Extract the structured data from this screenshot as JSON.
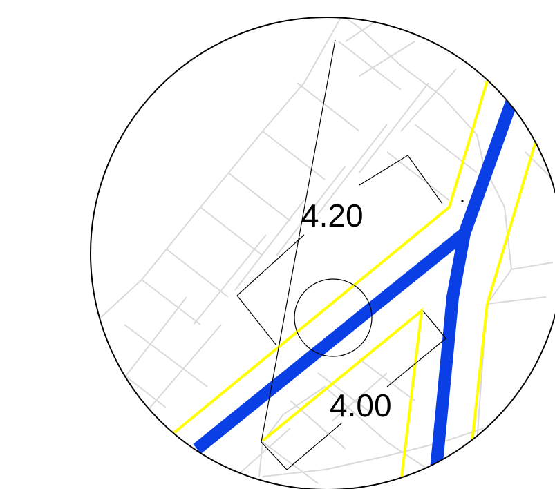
{
  "dimensions": {
    "upper": "4.20",
    "lower": "4.00"
  },
  "colors": {
    "background": "#ffffff",
    "outline": "#000000",
    "grid": "#d9d9d9",
    "yellow_lines": "#ffff00",
    "blue_pipe": "#0a3fe6"
  }
}
